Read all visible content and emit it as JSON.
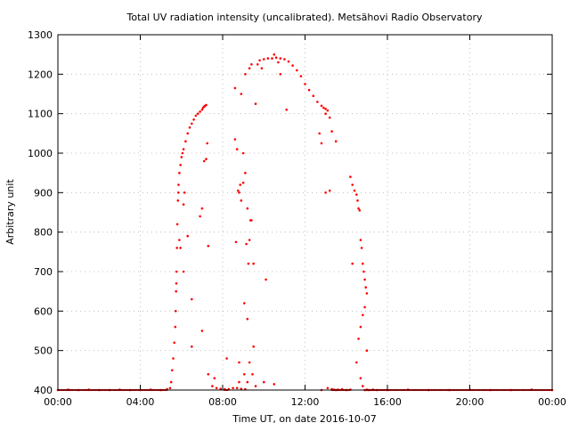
{
  "chart_data": {
    "type": "scatter",
    "title": "Total UV radiation intensity (uncalibrated). Metsähovi Radio Observatory",
    "xlabel": "Time UT, on date 2016-10-07",
    "ylabel": "Arbitrary unit",
    "x_unit": "hours UT",
    "xlim": [
      0,
      24
    ],
    "ylim": [
      400,
      1300
    ],
    "x_ticks": [
      {
        "value": 0,
        "label": "00:00"
      },
      {
        "value": 4,
        "label": "04:00"
      },
      {
        "value": 8,
        "label": "08:00"
      },
      {
        "value": 12,
        "label": "12:00"
      },
      {
        "value": 16,
        "label": "16:00"
      },
      {
        "value": 20,
        "label": "20:00"
      },
      {
        "value": 24,
        "label": "00:00"
      }
    ],
    "y_ticks": [
      400,
      500,
      600,
      700,
      800,
      900,
      1000,
      1100,
      1200,
      1300
    ],
    "grid": true,
    "legend": "none",
    "marker_color": "#ff0000",
    "series": [
      {
        "x": [
          0.0,
          0.5,
          1.0,
          1.5,
          2.0,
          2.5,
          3.0,
          3.5,
          4.0,
          4.5,
          5.0,
          5.3,
          5.45,
          5.5,
          5.55,
          5.6,
          5.65,
          5.7,
          5.72,
          5.74,
          5.76,
          5.78,
          5.8,
          5.83,
          5.86,
          5.9,
          5.95,
          6.0,
          6.05,
          6.1,
          6.2,
          6.3,
          6.4,
          6.5,
          6.6,
          6.7,
          6.8,
          6.9,
          7.0,
          7.05,
          7.1,
          7.15,
          7.2,
          5.85,
          5.9,
          5.95,
          6.1,
          6.15,
          6.3,
          6.5,
          6.9,
          7.0,
          7.1,
          7.2,
          7.25,
          7.3,
          5.75,
          6.1,
          6.5,
          7.0,
          7.3,
          7.5,
          7.7,
          7.9,
          8.1,
          8.3,
          8.5,
          8.7,
          8.9,
          9.1,
          7.6,
          8.2,
          8.8,
          9.3,
          9.6,
          8.6,
          8.7,
          8.8,
          8.9,
          9.0,
          9.1,
          9.2,
          9.3,
          9.4,
          9.5,
          8.65,
          8.75,
          8.85,
          9.0,
          9.15,
          9.25,
          9.35,
          8.8,
          9.05,
          9.2,
          9.45,
          9.05,
          9.2,
          9.5,
          10.1,
          8.6,
          8.9,
          9.6,
          9.1,
          9.3,
          9.7,
          9.8,
          10.0,
          10.2,
          10.4,
          10.6,
          10.8,
          11.0,
          11.2,
          11.4,
          11.6,
          11.8,
          12.0,
          12.2,
          12.4,
          12.6,
          12.8,
          12.9,
          13.0,
          13.1,
          9.4,
          9.9,
          10.5,
          10.7,
          10.8,
          11.1,
          12.7,
          12.8,
          13.0,
          13.2,
          13.3,
          13.5,
          10.0,
          10.5,
          12.8,
          13.1,
          13.3,
          13.4,
          13.5,
          13.6,
          13.8,
          14.0,
          14.2,
          13.0,
          13.2,
          14.2,
          14.3,
          14.4,
          14.5,
          14.55,
          14.6,
          14.65,
          14.7,
          14.75,
          14.8,
          14.85,
          14.9,
          14.95,
          15.0,
          14.6,
          14.7,
          14.8,
          14.9,
          15.0,
          14.3,
          14.5,
          14.7,
          14.8,
          14.9,
          15.0,
          15.1,
          15.3,
          15.5,
          16.0,
          17.0,
          18.0,
          19.0,
          20.0,
          21.0,
          22.0,
          23.0,
          24.0
        ],
        "y": [
          400,
          401,
          400,
          401,
          400,
          400,
          401,
          400,
          400,
          401,
          400,
          402,
          405,
          420,
          450,
          480,
          520,
          560,
          600,
          650,
          700,
          760,
          820,
          880,
          920,
          950,
          970,
          990,
          1000,
          1010,
          1030,
          1050,
          1065,
          1075,
          1085,
          1095,
          1100,
          1105,
          1110,
          1115,
          1118,
          1120,
          1122,
          900,
          780,
          760,
          870,
          900,
          790,
          510,
          840,
          860,
          980,
          985,
          1025,
          765,
          670,
          700,
          630,
          550,
          440,
          410,
          405,
          403,
          402,
          402,
          405,
          405,
          403,
          402,
          430,
          480,
          470,
          470,
          410,
          1035,
          1010,
          900,
          880,
          1000,
          950,
          860,
          780,
          830,
          720,
          775,
          905,
          920,
          925,
          770,
          720,
          830,
          420,
          440,
          420,
          440,
          620,
          580,
          510,
          680,
          1165,
          1150,
          1125,
          1200,
          1215,
          1225,
          1235,
          1238,
          1240,
          1240,
          1242,
          1240,
          1238,
          1232,
          1222,
          1210,
          1195,
          1175,
          1160,
          1145,
          1130,
          1120,
          1115,
          1112,
          1108,
          1225,
          1215,
          1250,
          1230,
          1200,
          1110,
          1050,
          1025,
          1100,
          1090,
          1055,
          1030,
          420,
          415,
          400,
          405,
          402,
          401,
          400,
          401,
          402,
          400,
          401,
          900,
          905,
          940,
          920,
          905,
          895,
          880,
          860,
          855,
          780,
          760,
          720,
          700,
          680,
          660,
          645,
          530,
          560,
          590,
          610,
          500,
          720,
          470,
          430,
          410,
          400,
          401,
          400,
          401,
          400,
          400,
          401,
          400,
          400,
          401,
          400,
          400,
          401,
          400
        ]
      }
    ]
  }
}
